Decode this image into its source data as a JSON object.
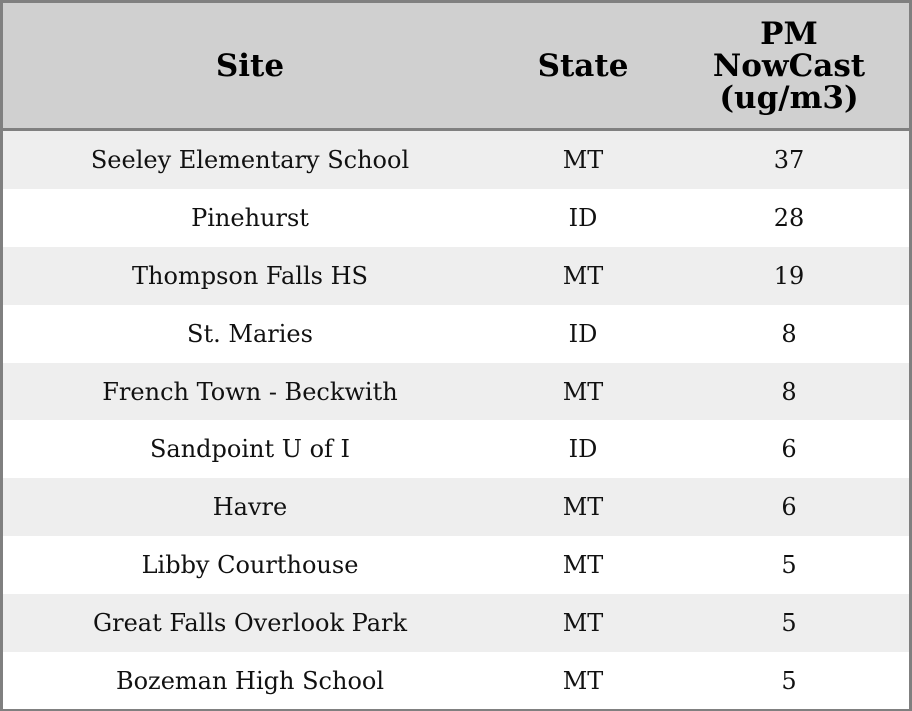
{
  "table": {
    "headers": [
      "Site",
      "State",
      "PM NowCast (ug/m3)"
    ],
    "rows": [
      [
        "Seeley Elementary School",
        "MT",
        "37"
      ],
      [
        "Pinehurst",
        "ID",
        "28"
      ],
      [
        "Thompson Falls HS",
        "MT",
        "19"
      ],
      [
        "St. Maries",
        "ID",
        "8"
      ],
      [
        "French Town - Beckwith",
        "MT",
        "8"
      ],
      [
        "Sandpoint U of I",
        "ID",
        "6"
      ],
      [
        "Havre",
        "MT",
        "6"
      ],
      [
        "Libby Courthouse",
        "MT",
        "5"
      ],
      [
        "Great Falls Overlook Park",
        "MT",
        "5"
      ],
      [
        "Bozeman High School",
        "MT",
        "5"
      ]
    ]
  },
  "colors": {
    "header_bg": "#d0d0d0",
    "stripe_bg": "#eeeeee",
    "border": "#808080"
  }
}
